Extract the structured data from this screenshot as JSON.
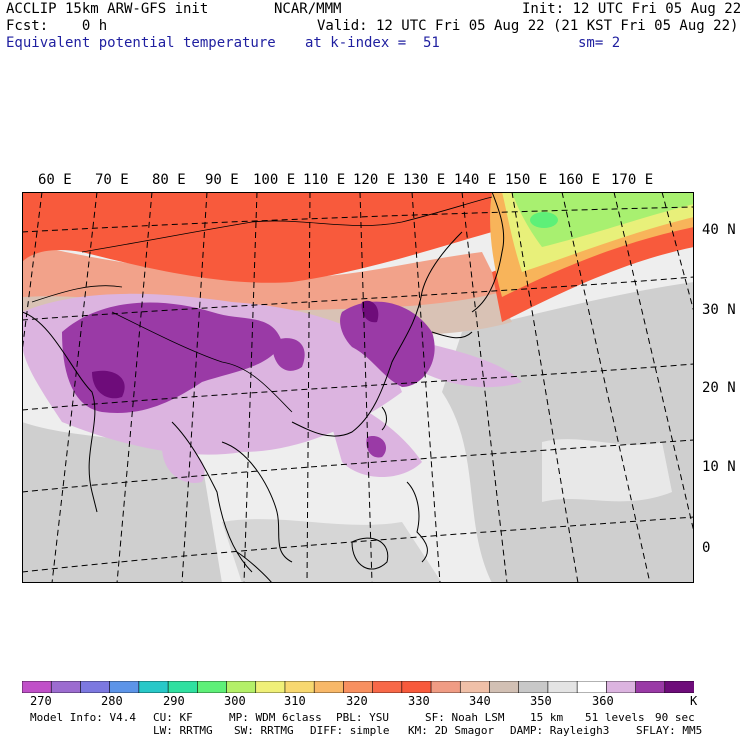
{
  "header": {
    "line1_left": "ACCLIP 15km ARW-GFS init",
    "line1_mid": "NCAR/MMM",
    "line1_right": "Init: 12 UTC Fri 05 Aug 22",
    "line2_left": "Fcst:    0 h",
    "line2_right": "Valid: 12 UTC Fri 05 Aug 22 (21 KST Fri 05 Aug 22)",
    "line3_left": "Equivalent potential temperature",
    "line3_mid": "at k-index =  51",
    "line3_right": "sm= 2"
  },
  "map": {
    "lon_labels": [
      "60 E",
      "70 E",
      "80 E",
      "90 E",
      "100 E",
      "110 E",
      "120 E",
      "130 E",
      "140 E",
      "150 E",
      "160 E",
      "170 E"
    ],
    "lat_labels": [
      "40 N",
      "30 N",
      "20 N",
      "10 N",
      "0"
    ],
    "colors": {
      "hot": "#f85a3c",
      "warm": "#f2a28a",
      "tan": "#d9c2b5",
      "grey": "#cfcfcf",
      "light": "#eeeeee",
      "lilac": "#dcb4e0",
      "purple": "#9a3aa6",
      "dark": "#6e0c7a",
      "green": "#a8f070",
      "yellow": "#e8f07a",
      "orange": "#f8b45a"
    }
  },
  "colorbar": {
    "colors": [
      "#c050c8",
      "#9c6cd0",
      "#7c78e0",
      "#5c94e8",
      "#28c8c8",
      "#30e0a0",
      "#5ef078",
      "#b4f068",
      "#f0f078",
      "#f8d870",
      "#f8b868",
      "#f89060",
      "#f86848",
      "#f85a3c",
      "#f09c84",
      "#f0c0a8",
      "#d2c0b4",
      "#c8c8c8",
      "#e4e4e4",
      "#ffffff",
      "#dcb4e0",
      "#9a3aa6",
      "#6e0c7a"
    ],
    "ticks": [
      "270",
      "280",
      "290",
      "300",
      "310",
      "320",
      "330",
      "340",
      "350",
      "360"
    ],
    "unit": "K"
  },
  "footer": {
    "line1": [
      "Model Info: V4.4",
      "CU: KF",
      "MP: WDM 6class",
      "PBL: YSU",
      "SF: Noah LSM",
      "15 km",
      "51 levels",
      "90 sec"
    ],
    "line2": [
      "LW: RRTMG",
      "SW: RRTMG",
      "DIFF: simple",
      "KM: 2D Smagor",
      "DAMP: Rayleigh3",
      "SFLAY: MM5"
    ]
  }
}
